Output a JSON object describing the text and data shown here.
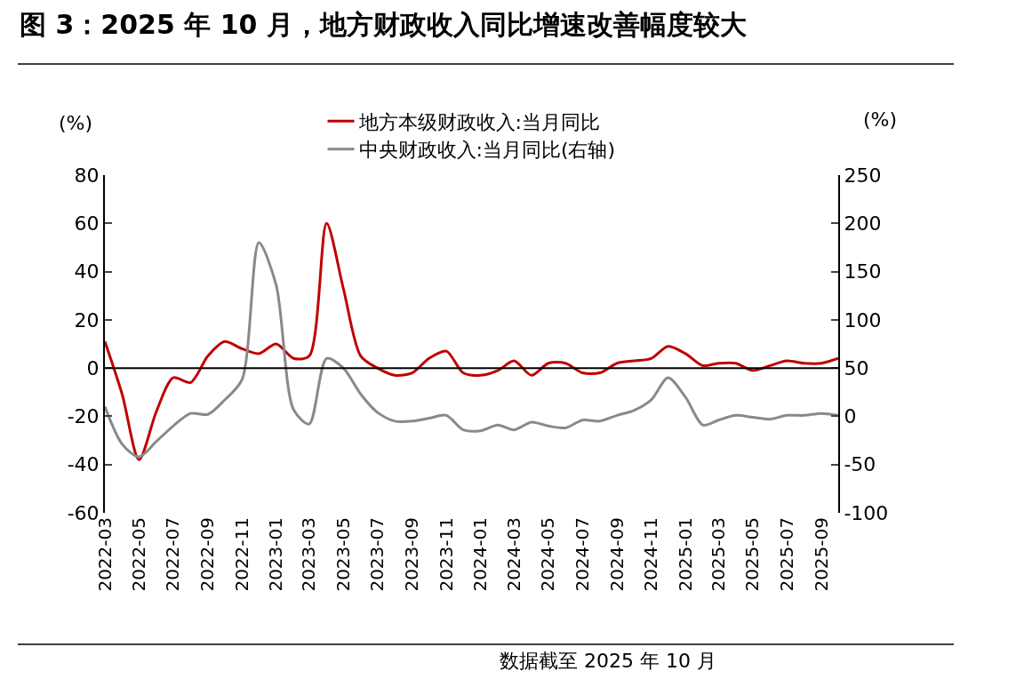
{
  "chart_data": {
    "type": "line",
    "title": "图 3：2025 年 10 月，地方财政收入同比增速改善幅度较大",
    "ylabel": "(%)",
    "y2label": "(%)",
    "annotations": [
      "数据截至 2025 年 10 月"
    ],
    "x": [
      "2022-03",
      "2022-04",
      "2022-05",
      "2022-06",
      "2022-07",
      "2022-08",
      "2022-09",
      "2022-10",
      "2022-11",
      "2022-12",
      "2023-01",
      "2023-02",
      "2023-03",
      "2023-04",
      "2023-05",
      "2023-06",
      "2023-07",
      "2023-08",
      "2023-09",
      "2023-10",
      "2023-11",
      "2023-12",
      "2024-01",
      "2024-02",
      "2024-03",
      "2024-04",
      "2024-05",
      "2024-06",
      "2024-07",
      "2024-08",
      "2024-09",
      "2024-10",
      "2024-11",
      "2024-12",
      "2025-01",
      "2025-02",
      "2025-03",
      "2025-04",
      "2025-05",
      "2025-06",
      "2025-07",
      "2025-08",
      "2025-09",
      "2025-10"
    ],
    "series": [
      {
        "name": "地方本级财政收入:当月同比",
        "color": "#c00000",
        "values": [
          11,
          -11,
          -38,
          -18,
          -4,
          -6,
          5,
          11,
          8,
          6,
          10,
          4,
          5,
          60,
          33,
          5,
          0,
          -3,
          -2,
          4,
          7,
          -2,
          -3,
          -1,
          3,
          -3,
          2,
          2,
          -2,
          -2,
          2,
          3,
          4,
          9,
          6,
          1,
          2,
          2,
          -1,
          1,
          3,
          2,
          2,
          4
        ]
      },
      {
        "name": "中央财政收入:当月同比(右轴)",
        "color": "#898989",
        "axis": "y2",
        "values": [
          10,
          -29,
          -42,
          -26,
          -10,
          3,
          2,
          17,
          38,
          180,
          136,
          7,
          -8,
          60,
          50,
          23,
          4,
          -5,
          -5,
          -2,
          1,
          -14,
          -15,
          -9,
          -14,
          -6,
          -10,
          -12,
          -4,
          -5,
          1,
          6,
          17,
          40,
          20,
          -9,
          -4,
          1,
          -1,
          -3,
          1,
          1,
          3,
          1
        ]
      }
    ],
    "xlim": [
      "2022-03",
      "2025-10"
    ],
    "xticks": [
      "2022-03",
      "2022-05",
      "2022-07",
      "2022-09",
      "2022-11",
      "2023-01",
      "2023-03",
      "2023-05",
      "2023-07",
      "2023-09",
      "2023-11",
      "2024-01",
      "2024-03",
      "2024-05",
      "2024-07",
      "2024-09",
      "2024-11",
      "2025-01",
      "2025-03",
      "2025-05",
      "2025-07",
      "2025-09"
    ],
    "ylim": [
      -60,
      80
    ],
    "yticks": [
      -60,
      -40,
      -20,
      0,
      20,
      40,
      60,
      80
    ],
    "y2lim": [
      -100,
      250
    ],
    "y2ticks": [
      -100,
      -50,
      0,
      50,
      100,
      150,
      200,
      250
    ],
    "ref_lines": [
      {
        "axis": "y",
        "value": 0,
        "color": "#000000"
      }
    ],
    "legend": "top",
    "line_style": "solid"
  }
}
